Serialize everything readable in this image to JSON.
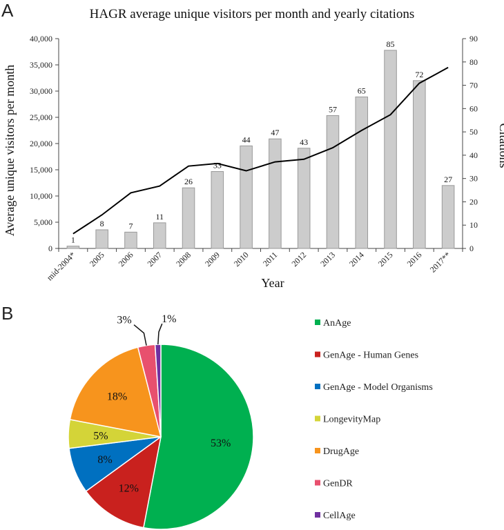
{
  "panels": {
    "a_label": "A",
    "b_label": "B"
  },
  "chart_data": [
    {
      "type": "bar+line",
      "title": "HAGR average unique visitors per month and yearly citations",
      "xlabel": "Year",
      "ylabel": "Average unique visitors per month",
      "y2label": "Citations",
      "categories": [
        "mid-2004*",
        "2005",
        "2006",
        "2007",
        "2008",
        "2009",
        "2010",
        "2011",
        "2012",
        "2013",
        "2014",
        "2015",
        "2016",
        "2017**"
      ],
      "ylim": [
        0,
        40000
      ],
      "y_ticks": [
        0,
        5000,
        10000,
        15000,
        20000,
        25000,
        30000,
        35000,
        40000
      ],
      "y_tick_labels": [
        "0",
        "5,000",
        "10,000",
        "15,000",
        "20,000",
        "25,000",
        "30,000",
        "35,000",
        "40,000"
      ],
      "y2lim": [
        0,
        90
      ],
      "y2_ticks": [
        0,
        10,
        20,
        30,
        40,
        50,
        60,
        70,
        80,
        90
      ],
      "y2_tick_labels": [
        "0",
        "10",
        "20",
        "30",
        "40",
        "50",
        "60",
        "70",
        "80",
        "90"
      ],
      "series": [
        {
          "name": "Citations",
          "type": "bar",
          "axis": "right",
          "color": "#cccccc",
          "values": [
            1,
            8,
            7,
            11,
            26,
            33,
            44,
            47,
            43,
            57,
            65,
            85,
            72,
            27
          ],
          "labels": [
            "1",
            "8",
            "7",
            "11",
            "26",
            "33",
            "44",
            "47",
            "43",
            "57",
            "65",
            "85",
            "72",
            "27"
          ]
        },
        {
          "name": "Average unique visitors per month",
          "type": "line",
          "axis": "left",
          "color": "#000000",
          "values": [
            2800,
            6400,
            10600,
            11900,
            15700,
            16200,
            14800,
            16500,
            17000,
            19200,
            22500,
            25500,
            31500,
            34500
          ]
        }
      ]
    },
    {
      "type": "pie",
      "slices": [
        {
          "name": "AnAge",
          "value": 53,
          "label": "53%",
          "color": "#00b050"
        },
        {
          "name": "GenAge - Human Genes",
          "value": 12,
          "label": "12%",
          "color": "#c9211e"
        },
        {
          "name": "GenAge - Model Organisms",
          "value": 8,
          "label": "8%",
          "color": "#0070c0"
        },
        {
          "name": "LongevityMap",
          "value": 5,
          "label": "5%",
          "color": "#d4d438"
        },
        {
          "name": "DrugAge",
          "value": 18,
          "label": "18%",
          "color": "#f7941d"
        },
        {
          "name": "GenDR",
          "value": 3,
          "label": "3%",
          "color": "#e8506e"
        },
        {
          "name": "CellAge",
          "value": 1,
          "label": "1%",
          "color": "#7030a0"
        }
      ]
    }
  ]
}
